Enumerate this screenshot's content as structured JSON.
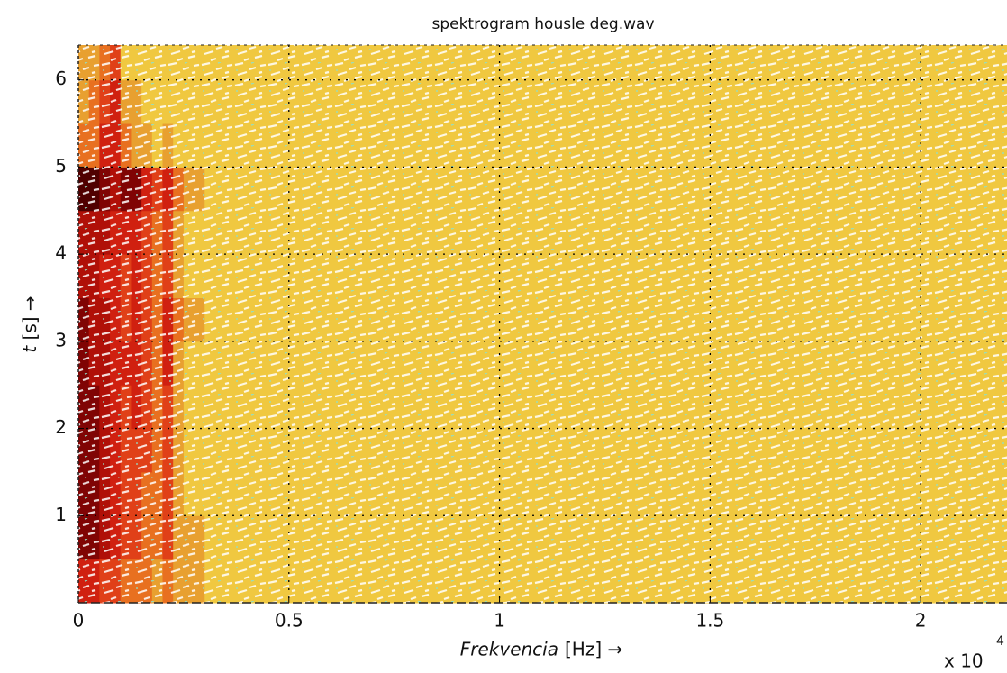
{
  "chart_data": {
    "type": "heatmap",
    "title": "spektrogram housle deg.wav",
    "xlabel": "Frekvencia",
    "xlabel_unit": "[Hz] →",
    "ylabel": "t",
    "ylabel_unit": "[s] →",
    "x_multiplier": "x 10",
    "x_multiplier_exp": "4",
    "xlim": [
      0,
      22050
    ],
    "ylim": [
      0,
      6.4
    ],
    "xticks": [
      0,
      {
        "value": 5000,
        "label": "0.5"
      },
      {
        "value": 10000,
        "label": "1"
      },
      {
        "value": 15000,
        "label": "1.5"
      },
      {
        "value": 20000,
        "label": "2"
      }
    ],
    "yticks": [
      1,
      2,
      3,
      4,
      5,
      6
    ],
    "grid": true,
    "xbins": [
      0,
      250,
      500,
      750,
      1000,
      1250,
      1500,
      1750,
      2000,
      2250,
      2500,
      3000,
      5000,
      10000,
      15000,
      20000,
      22050
    ],
    "ybins": [
      0,
      0.5,
      1,
      1.5,
      2,
      2.5,
      3,
      3.5,
      4,
      4.5,
      5,
      5.5,
      6,
      6.4
    ],
    "colormap": [
      "#fff8c0",
      "#f8e860",
      "#f0c840",
      "#e8a030",
      "#e87020",
      "#e04018",
      "#d02010",
      "#b01008",
      "#800404",
      "#500000"
    ],
    "z": [
      [
        6,
        6,
        5,
        5,
        4,
        4,
        4,
        3,
        4,
        3,
        3,
        2,
        2,
        2,
        2,
        2
      ],
      [
        8,
        8,
        7,
        6,
        5,
        5,
        4,
        4,
        5,
        3,
        3,
        2,
        2,
        2,
        2,
        2
      ],
      [
        8,
        8,
        7,
        6,
        5,
        5,
        4,
        4,
        5,
        3,
        2,
        2,
        2,
        2,
        2,
        2
      ],
      [
        8,
        8,
        7,
        6,
        5,
        5,
        5,
        4,
        5,
        3,
        2,
        2,
        2,
        2,
        2,
        2
      ],
      [
        8,
        8,
        7,
        6,
        5,
        6,
        5,
        4,
        5,
        3,
        2,
        2,
        2,
        2,
        2,
        2
      ],
      [
        8,
        7,
        7,
        6,
        6,
        6,
        5,
        4,
        6,
        3,
        2,
        2,
        2,
        2,
        2,
        2
      ],
      [
        8,
        7,
        7,
        6,
        5,
        6,
        5,
        4,
        6,
        4,
        3,
        2,
        2,
        2,
        2,
        2
      ],
      [
        7,
        7,
        6,
        6,
        5,
        6,
        5,
        4,
        5,
        3,
        2,
        2,
        2,
        2,
        2,
        2
      ],
      [
        7,
        7,
        7,
        6,
        6,
        6,
        5,
        4,
        5,
        3,
        2,
        2,
        2,
        2,
        2,
        2
      ],
      [
        9,
        9,
        8,
        7,
        8,
        8,
        6,
        5,
        6,
        4,
        3,
        2,
        2,
        2,
        2,
        2
      ],
      [
        4,
        4,
        6,
        6,
        4,
        3,
        3,
        2,
        3,
        2,
        2,
        2,
        2,
        2,
        2,
        2
      ],
      [
        3,
        4,
        5,
        6,
        3,
        3,
        2,
        2,
        2,
        2,
        2,
        2,
        2,
        2,
        2,
        2
      ],
      [
        3,
        3,
        4,
        5,
        2,
        2,
        2,
        2,
        2,
        2,
        2,
        2,
        2,
        2,
        2,
        2
      ]
    ]
  }
}
